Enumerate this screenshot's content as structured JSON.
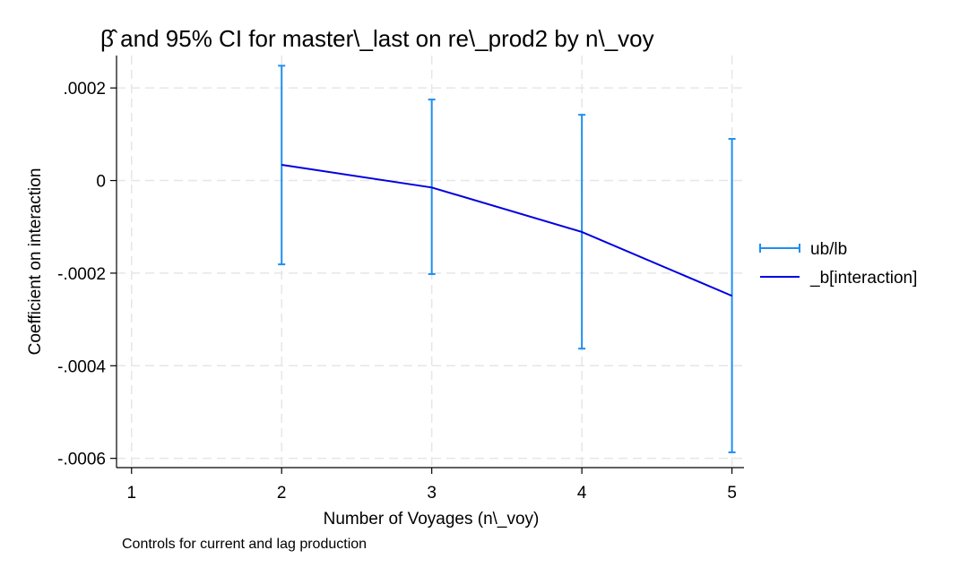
{
  "chart_data": {
    "type": "line",
    "title": "β̂ and 95% CI for master\\_last on re\\_prod2 by n\\_voy",
    "xlabel": "Number of Voyages (n\\_voy)",
    "ylabel": "Coefficient on interaction",
    "note": "Controls for current and lag production",
    "x_ticks": [
      "1",
      "2",
      "3",
      "4",
      "5"
    ],
    "y_ticks": [
      {
        "value": 0.0002,
        "label": ".0002"
      },
      {
        "value": 0,
        "label": "0"
      },
      {
        "value": -0.0002,
        "label": "-.0002"
      },
      {
        "value": -0.0004,
        "label": "-.0004"
      },
      {
        "value": -0.0006,
        "label": "-.0006"
      }
    ],
    "xlim": [
      0.9,
      5.08
    ],
    "ylim": [
      -0.00062,
      0.00027
    ],
    "grid": true,
    "legend_position": "right",
    "series": [
      {
        "name": "ub/lb",
        "kind": "errorbar",
        "color": "#1f8ef1",
        "x": [
          2,
          3,
          4,
          5
        ],
        "upper": [
          0.000248,
          0.000175,
          0.000142,
          9e-05
        ],
        "lower": [
          -0.000181,
          -0.000202,
          -0.000363,
          -0.000587
        ]
      },
      {
        "name": "_b[interaction]",
        "kind": "line",
        "color": "#0000e0",
        "x": [
          2,
          3,
          4,
          5
        ],
        "values": [
          3.4e-05,
          -1.5e-05,
          -0.000111,
          -0.000249
        ]
      }
    ]
  }
}
